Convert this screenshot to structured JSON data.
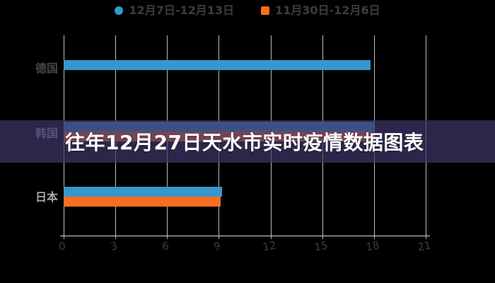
{
  "banner": {
    "title": "往年12月27日天水市实时疫情数据图表",
    "bg": "rgba(64,53,102,0.72)",
    "text_color": "#ffffff"
  },
  "legend": {
    "items": [
      {
        "label": "12月7日-12月13日",
        "color": "#3797cd",
        "shape": "circle"
      },
      {
        "label": "11月30日-12月6日",
        "color": "#fb6d20",
        "shape": "square"
      }
    ]
  },
  "chart_data": {
    "type": "bar",
    "orientation": "horizontal",
    "title": "往年12月27日天水市实时疫情数据图表",
    "categories": [
      "德国",
      "韩国",
      "日本"
    ],
    "label_colors": [
      "#464646",
      "#9b96ac",
      "#a9a9a9"
    ],
    "series": [
      {
        "name": "12月7日-12月13日",
        "color": "#3797cd",
        "values": [
          17.8,
          18.0,
          9.2
        ]
      },
      {
        "name": "11月30日-12月6日",
        "color": "#fb6d20",
        "values": [
          0,
          17.9,
          9.1
        ]
      }
    ],
    "x_ticks": [
      0,
      3,
      6,
      9,
      12,
      15,
      18,
      21
    ],
    "xlim": [
      0,
      21
    ],
    "xlabel": "",
    "ylabel": "",
    "grid": true,
    "legend_position": "top",
    "background": "#000000",
    "gridline_color": "#dbdbdb",
    "tick_label_color": "#3c3c3c"
  }
}
